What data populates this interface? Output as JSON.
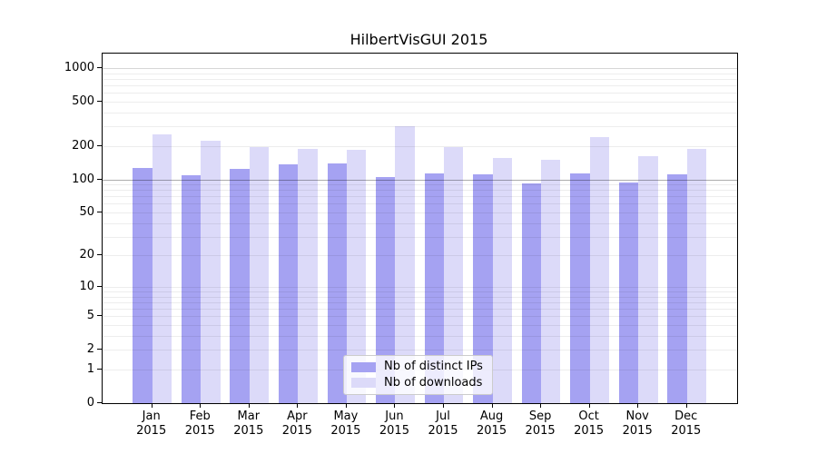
{
  "title": "HilbertVisGUI 2015",
  "chart_data": {
    "type": "bar",
    "title": "HilbertVisGUI 2015",
    "y_scale": "log1p",
    "grid": "horizontal-log-minor",
    "x_categories": [
      "Jan",
      "Feb",
      "Mar",
      "Apr",
      "May",
      "Jun",
      "Jul",
      "Aug",
      "Sep",
      "Oct",
      "Nov",
      "Dec"
    ],
    "x_year": "2015",
    "y_ticks": [
      0,
      1,
      2,
      5,
      10,
      20,
      50,
      100,
      200,
      500,
      1000
    ],
    "ylim": [
      0,
      1340
    ],
    "legend_position": "bottom-center",
    "series": [
      {
        "name": "Nb of distinct IPs",
        "key": "distinct-ips",
        "color": "#a5a2f2",
        "values": [
          126,
          108,
          125,
          137,
          139,
          104,
          113,
          111,
          91,
          113,
          94,
          111
        ]
      },
      {
        "name": "Nb of downloads",
        "key": "downloads",
        "color": "#dcdaf9",
        "values": [
          253,
          224,
          196,
          188,
          185,
          300,
          197,
          155,
          150,
          238,
          163,
          188
        ]
      }
    ]
  }
}
